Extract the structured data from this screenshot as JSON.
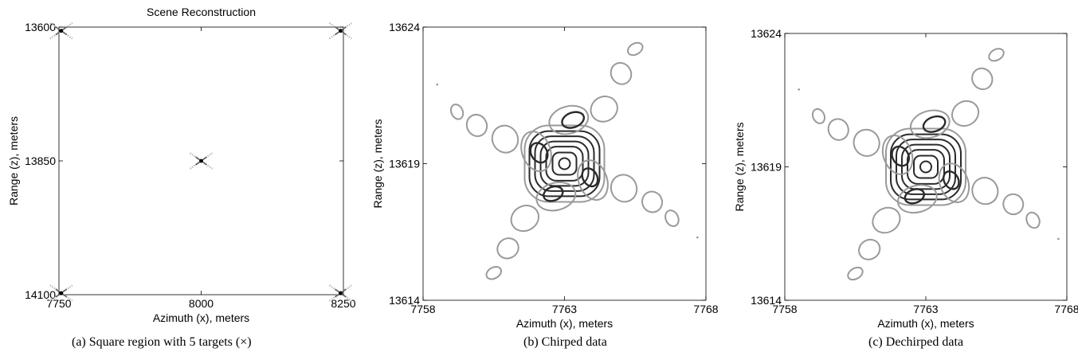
{
  "chart_data": [
    {
      "type": "scatter",
      "title": "Scene Reconstruction",
      "xlabel": "Azimuth (x), meters",
      "ylabel": "Range (z), meters",
      "xlim": [
        7750,
        8250
      ],
      "ylim": [
        13600,
        14100
      ],
      "y_inverted": true,
      "x_ticks": [
        7750,
        8000,
        8250
      ],
      "y_ticks": [
        13600,
        13850,
        14100
      ],
      "grid": false,
      "marker": "×",
      "points": [
        {
          "x": 7754,
          "y": 13607
        },
        {
          "x": 8245,
          "y": 13607
        },
        {
          "x": 8000,
          "y": 13850
        },
        {
          "x": 7754,
          "y": 14097
        },
        {
          "x": 8245,
          "y": 14097
        }
      ],
      "caption": "(a) Square region with 5 targets (×)"
    },
    {
      "type": "contour",
      "title": "",
      "xlabel": "Azimuth (x), meters",
      "ylabel": "Range (z), meters",
      "xlim": [
        7758,
        7768
      ],
      "ylim": [
        13614,
        13624
      ],
      "x_ticks": [
        7758,
        7763,
        7768
      ],
      "y_ticks": [
        13614,
        13619,
        13624
      ],
      "grid": false,
      "center": [
        7763,
        13619
      ],
      "strong_levels": 5,
      "outer_contours": [
        {
          "x": 7763.3,
          "y": 13620.6,
          "rx": 0.4,
          "ry": 0.27,
          "angle": -20,
          "dark": true
        },
        {
          "x": 7762.1,
          "y": 13619.4,
          "rx": 0.28,
          "ry": 0.38,
          "angle": -30,
          "dark": true
        },
        {
          "x": 7763.9,
          "y": 13618.5,
          "rx": 0.25,
          "ry": 0.35,
          "angle": -30,
          "dark": true
        },
        {
          "x": 7762.6,
          "y": 13617.9,
          "rx": 0.35,
          "ry": 0.25,
          "angle": -20,
          "dark": true
        },
        {
          "x": 7763.15,
          "y": 13620.6,
          "rx": 0.7,
          "ry": 0.5,
          "angle": -15,
          "dark": false
        },
        {
          "x": 7762.0,
          "y": 13619.45,
          "rx": 0.5,
          "ry": 0.75,
          "angle": -20,
          "dark": false
        },
        {
          "x": 7764.0,
          "y": 13618.4,
          "rx": 0.5,
          "ry": 0.75,
          "angle": -20,
          "dark": false
        },
        {
          "x": 7762.7,
          "y": 13617.8,
          "rx": 0.7,
          "ry": 0.5,
          "angle": -15,
          "dark": false
        },
        {
          "x": 7764.4,
          "y": 13621.0,
          "rx": 0.48,
          "ry": 0.45,
          "angle": -30,
          "dark": false
        },
        {
          "x": 7765.0,
          "y": 13622.3,
          "rx": 0.35,
          "ry": 0.4,
          "angle": -30,
          "dark": false
        },
        {
          "x": 7765.5,
          "y": 13623.2,
          "rx": 0.28,
          "ry": 0.2,
          "angle": -30,
          "dark": false
        },
        {
          "x": 7760.9,
          "y": 13619.9,
          "rx": 0.45,
          "ry": 0.5,
          "angle": -25,
          "dark": false
        },
        {
          "x": 7759.9,
          "y": 13620.4,
          "rx": 0.35,
          "ry": 0.4,
          "angle": -25,
          "dark": false
        },
        {
          "x": 7759.2,
          "y": 13620.9,
          "rx": 0.2,
          "ry": 0.28,
          "angle": -25,
          "dark": false
        },
        {
          "x": 7765.1,
          "y": 13618.1,
          "rx": 0.45,
          "ry": 0.5,
          "angle": -25,
          "dark": false
        },
        {
          "x": 7766.1,
          "y": 13617.6,
          "rx": 0.35,
          "ry": 0.38,
          "angle": -25,
          "dark": false
        },
        {
          "x": 7766.8,
          "y": 13617.0,
          "rx": 0.22,
          "ry": 0.3,
          "angle": -25,
          "dark": false
        },
        {
          "x": 7761.6,
          "y": 13617.0,
          "rx": 0.5,
          "ry": 0.45,
          "angle": -30,
          "dark": false
        },
        {
          "x": 7761.0,
          "y": 13615.9,
          "rx": 0.38,
          "ry": 0.36,
          "angle": -30,
          "dark": false
        },
        {
          "x": 7760.5,
          "y": 13615.0,
          "rx": 0.28,
          "ry": 0.2,
          "angle": -30,
          "dark": false
        }
      ],
      "dots": [
        {
          "x": 7758.5,
          "y": 13621.9
        },
        {
          "x": 7767.7,
          "y": 13616.3
        }
      ],
      "caption": "(b) Chirped data"
    },
    {
      "type": "contour",
      "title": "",
      "xlabel": "Azimuth (x), meters",
      "ylabel": "Range (z), meters",
      "xlim": [
        7758,
        7768
      ],
      "ylim": [
        13614,
        13624
      ],
      "x_ticks": [
        7758,
        7763,
        7768
      ],
      "y_ticks": [
        13614,
        13619,
        13624
      ],
      "grid": false,
      "center": [
        7763,
        13619
      ],
      "strong_levels": 5,
      "outer_contours": [
        {
          "x": 7763.3,
          "y": 13620.6,
          "rx": 0.4,
          "ry": 0.27,
          "angle": -20,
          "dark": true
        },
        {
          "x": 7762.1,
          "y": 13619.4,
          "rx": 0.28,
          "ry": 0.38,
          "angle": -30,
          "dark": true
        },
        {
          "x": 7763.9,
          "y": 13618.5,
          "rx": 0.25,
          "ry": 0.35,
          "angle": -30,
          "dark": true
        },
        {
          "x": 7762.6,
          "y": 13617.9,
          "rx": 0.35,
          "ry": 0.25,
          "angle": -20,
          "dark": true
        },
        {
          "x": 7763.15,
          "y": 13620.6,
          "rx": 0.7,
          "ry": 0.5,
          "angle": -15,
          "dark": false
        },
        {
          "x": 7762.0,
          "y": 13619.45,
          "rx": 0.5,
          "ry": 0.75,
          "angle": -20,
          "dark": false
        },
        {
          "x": 7764.0,
          "y": 13618.4,
          "rx": 0.5,
          "ry": 0.75,
          "angle": -20,
          "dark": false
        },
        {
          "x": 7762.7,
          "y": 13617.8,
          "rx": 0.7,
          "ry": 0.5,
          "angle": -15,
          "dark": false
        },
        {
          "x": 7764.4,
          "y": 13621.0,
          "rx": 0.48,
          "ry": 0.45,
          "angle": -30,
          "dark": false
        },
        {
          "x": 7765.0,
          "y": 13622.3,
          "rx": 0.35,
          "ry": 0.4,
          "angle": -30,
          "dark": false
        },
        {
          "x": 7765.5,
          "y": 13623.2,
          "rx": 0.28,
          "ry": 0.2,
          "angle": -30,
          "dark": false
        },
        {
          "x": 7760.9,
          "y": 13619.9,
          "rx": 0.45,
          "ry": 0.5,
          "angle": -25,
          "dark": false
        },
        {
          "x": 7759.9,
          "y": 13620.4,
          "rx": 0.35,
          "ry": 0.4,
          "angle": -25,
          "dark": false
        },
        {
          "x": 7759.2,
          "y": 13620.9,
          "rx": 0.2,
          "ry": 0.28,
          "angle": -25,
          "dark": false
        },
        {
          "x": 7765.1,
          "y": 13618.1,
          "rx": 0.45,
          "ry": 0.5,
          "angle": -25,
          "dark": false
        },
        {
          "x": 7766.1,
          "y": 13617.6,
          "rx": 0.35,
          "ry": 0.38,
          "angle": -25,
          "dark": false
        },
        {
          "x": 7766.8,
          "y": 13617.0,
          "rx": 0.22,
          "ry": 0.3,
          "angle": -25,
          "dark": false
        },
        {
          "x": 7761.6,
          "y": 13617.0,
          "rx": 0.5,
          "ry": 0.45,
          "angle": -30,
          "dark": false
        },
        {
          "x": 7761.0,
          "y": 13615.9,
          "rx": 0.38,
          "ry": 0.36,
          "angle": -30,
          "dark": false
        },
        {
          "x": 7760.5,
          "y": 13615.0,
          "rx": 0.28,
          "ry": 0.2,
          "angle": -30,
          "dark": false
        }
      ],
      "dots": [
        {
          "x": 7758.5,
          "y": 13621.9
        },
        {
          "x": 7767.7,
          "y": 13616.3
        }
      ],
      "caption": "(c) Dechirped data"
    }
  ],
  "colors": {
    "axis": "#000000",
    "dark_contour": "#2a2a2a",
    "light_contour": "#9a9a9a",
    "target": "#000000"
  }
}
